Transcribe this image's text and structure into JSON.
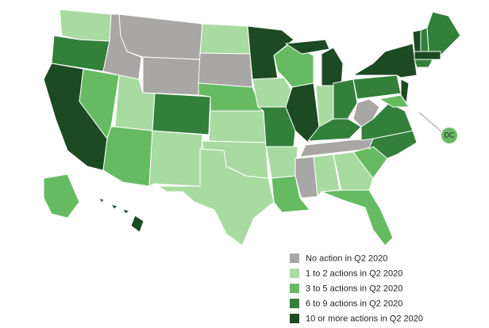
{
  "map": {
    "legend": [
      {
        "label": "No action in Q2 2020",
        "color": "#a9a6a6"
      },
      {
        "label": "1 to 2 actions in Q2 2020",
        "color": "#a8dba0"
      },
      {
        "label": "3 to 5 actions in Q2 2020",
        "color": "#66bb62"
      },
      {
        "label": "6 to 9 actions in Q2 2020",
        "color": "#33803a"
      },
      {
        "label": "10 or more actions in Q2 2020",
        "color": "#1c4a23"
      }
    ],
    "dc_label": "DC"
  }
}
